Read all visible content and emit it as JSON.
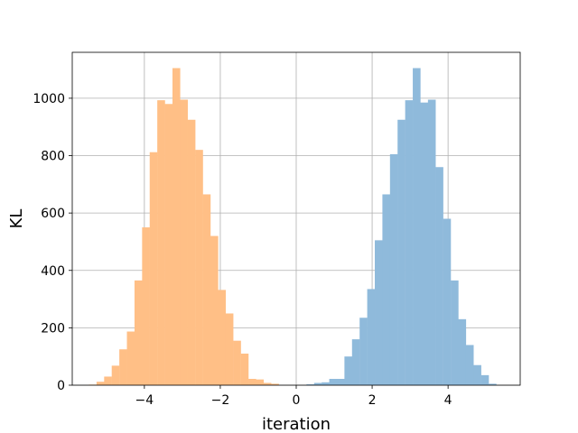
{
  "chart_data": {
    "type": "histogram",
    "title": "",
    "xlabel": "iteration",
    "ylabel": "KL",
    "xlim": [
      -5.9,
      5.9
    ],
    "ylim": [
      0,
      1160
    ],
    "grid": true,
    "legend": "none",
    "xticks": [
      -4,
      -2,
      0,
      2,
      4
    ],
    "yticks": [
      0,
      200,
      400,
      600,
      800,
      1000
    ],
    "xtick_labels": [
      "−4",
      "−2",
      "0",
      "2",
      "4"
    ],
    "ytick_labels": [
      "0",
      "200",
      "400",
      "600",
      "800",
      "1000"
    ],
    "series": [
      {
        "color": "#ffbf86",
        "bins": [
          {
            "x0": -5.46,
            "x1": -5.26,
            "y": 2
          },
          {
            "x0": -5.26,
            "x1": -5.06,
            "y": 12
          },
          {
            "x0": -5.06,
            "x1": -4.86,
            "y": 30
          },
          {
            "x0": -4.86,
            "x1": -4.66,
            "y": 68
          },
          {
            "x0": -4.66,
            "x1": -4.46,
            "y": 125
          },
          {
            "x0": -4.46,
            "x1": -4.26,
            "y": 187
          },
          {
            "x0": -4.26,
            "x1": -4.06,
            "y": 365
          },
          {
            "x0": -4.06,
            "x1": -3.86,
            "y": 550
          },
          {
            "x0": -3.86,
            "x1": -3.66,
            "y": 812
          },
          {
            "x0": -3.66,
            "x1": -3.46,
            "y": 993
          },
          {
            "x0": -3.46,
            "x1": -3.26,
            "y": 980
          },
          {
            "x0": -3.26,
            "x1": -3.06,
            "y": 1105
          },
          {
            "x0": -3.06,
            "x1": -2.86,
            "y": 995
          },
          {
            "x0": -2.86,
            "x1": -2.66,
            "y": 925
          },
          {
            "x0": -2.66,
            "x1": -2.46,
            "y": 820
          },
          {
            "x0": -2.46,
            "x1": -2.26,
            "y": 665
          },
          {
            "x0": -2.26,
            "x1": -2.06,
            "y": 520
          },
          {
            "x0": -2.06,
            "x1": -1.86,
            "y": 332
          },
          {
            "x0": -1.86,
            "x1": -1.66,
            "y": 250
          },
          {
            "x0": -1.66,
            "x1": -1.46,
            "y": 155
          },
          {
            "x0": -1.46,
            "x1": -1.26,
            "y": 110
          },
          {
            "x0": -1.26,
            "x1": -1.06,
            "y": 22
          },
          {
            "x0": -1.06,
            "x1": -0.86,
            "y": 20
          },
          {
            "x0": -0.86,
            "x1": -0.66,
            "y": 8
          },
          {
            "x0": -0.66,
            "x1": -0.46,
            "y": 5
          }
        ]
      },
      {
        "color": "#8fbadb",
        "bins": [
          {
            "x0": 0.27,
            "x1": 0.47,
            "y": 3
          },
          {
            "x0": 0.47,
            "x1": 0.67,
            "y": 8
          },
          {
            "x0": 0.67,
            "x1": 0.87,
            "y": 10
          },
          {
            "x0": 0.87,
            "x1": 1.07,
            "y": 22
          },
          {
            "x0": 1.07,
            "x1": 1.27,
            "y": 22
          },
          {
            "x0": 1.27,
            "x1": 1.47,
            "y": 100
          },
          {
            "x0": 1.47,
            "x1": 1.67,
            "y": 160
          },
          {
            "x0": 1.67,
            "x1": 1.87,
            "y": 235
          },
          {
            "x0": 1.87,
            "x1": 2.07,
            "y": 335
          },
          {
            "x0": 2.07,
            "x1": 2.27,
            "y": 505
          },
          {
            "x0": 2.27,
            "x1": 2.47,
            "y": 665
          },
          {
            "x0": 2.47,
            "x1": 2.67,
            "y": 805
          },
          {
            "x0": 2.67,
            "x1": 2.87,
            "y": 925
          },
          {
            "x0": 2.87,
            "x1": 3.07,
            "y": 993
          },
          {
            "x0": 3.07,
            "x1": 3.27,
            "y": 1105
          },
          {
            "x0": 3.27,
            "x1": 3.47,
            "y": 985
          },
          {
            "x0": 3.47,
            "x1": 3.67,
            "y": 995
          },
          {
            "x0": 3.67,
            "x1": 3.87,
            "y": 760
          },
          {
            "x0": 3.87,
            "x1": 4.07,
            "y": 580
          },
          {
            "x0": 4.07,
            "x1": 4.27,
            "y": 365
          },
          {
            "x0": 4.27,
            "x1": 4.47,
            "y": 230
          },
          {
            "x0": 4.47,
            "x1": 4.67,
            "y": 140
          },
          {
            "x0": 4.67,
            "x1": 4.87,
            "y": 70
          },
          {
            "x0": 4.87,
            "x1": 5.07,
            "y": 35
          },
          {
            "x0": 5.07,
            "x1": 5.27,
            "y": 5
          }
        ]
      }
    ]
  }
}
